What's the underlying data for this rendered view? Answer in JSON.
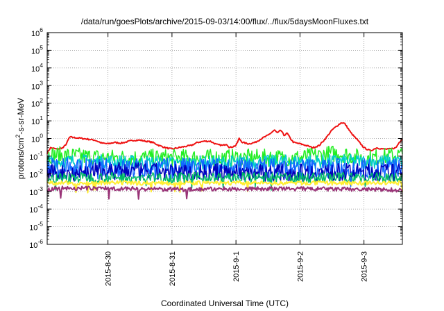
{
  "chart_data": {
    "type": "line",
    "title": "/data/run/goesPlots/archive/2015-09-03/14:00/flux/../flux/5daysMoonFluxes.txt",
    "xlabel": "Coordinated Universal Time (UTC)",
    "ylabel": {
      "pre": "protons/cm",
      "sup": "2",
      "post": "-s-sr-MeV"
    },
    "yscale": "log",
    "ylim_exp": [
      -6,
      6
    ],
    "y_ticks": [
      {
        "base": "10",
        "exp": "-6"
      },
      {
        "base": "10",
        "exp": "-5"
      },
      {
        "base": "10",
        "exp": "-4"
      },
      {
        "base": "10",
        "exp": "-3"
      },
      {
        "base": "10",
        "exp": "-2"
      },
      {
        "base": "10",
        "exp": "-1"
      },
      {
        "base": "10",
        "exp": "0"
      },
      {
        "base": "10",
        "exp": "1"
      },
      {
        "base": "10",
        "exp": "2"
      },
      {
        "base": "10",
        "exp": "3"
      },
      {
        "base": "10",
        "exp": "4"
      },
      {
        "base": "10",
        "exp": "5"
      },
      {
        "base": "10",
        "exp": "6"
      }
    ],
    "x_ticks": [
      {
        "label": "2015-8-30",
        "day": 30.0
      },
      {
        "label": "2015-8-31",
        "day": 31.0
      },
      {
        "label": "2015-9-1",
        "day": 32.0
      },
      {
        "label": "2015-9-2",
        "day": 33.0
      },
      {
        "label": "2015-9-3",
        "day": 34.0
      }
    ],
    "xlim_day": [
      29.05,
      34.6
    ],
    "grid": true,
    "legend": "none",
    "series": [
      {
        "color": "#ee1111",
        "width": 2,
        "noise": 0.04,
        "points": [
          [
            29.05,
            0.15
          ],
          [
            29.1,
            0.3
          ],
          [
            29.2,
            0.25
          ],
          [
            29.3,
            0.3
          ],
          [
            29.35,
            0.5
          ],
          [
            29.4,
            1.2
          ],
          [
            29.5,
            1.1
          ],
          [
            29.6,
            1.0
          ],
          [
            29.7,
            0.9
          ],
          [
            29.8,
            0.8
          ],
          [
            29.9,
            0.55
          ],
          [
            30.0,
            0.5
          ],
          [
            30.1,
            0.6
          ],
          [
            30.2,
            0.55
          ],
          [
            30.3,
            0.65
          ],
          [
            30.4,
            0.8
          ],
          [
            30.5,
            0.8
          ],
          [
            30.6,
            0.7
          ],
          [
            30.7,
            0.6
          ],
          [
            30.8,
            0.4
          ],
          [
            30.9,
            0.3
          ],
          [
            31.0,
            0.25
          ],
          [
            31.1,
            0.3
          ],
          [
            31.2,
            0.35
          ],
          [
            31.3,
            0.4
          ],
          [
            31.4,
            0.6
          ],
          [
            31.5,
            0.7
          ],
          [
            31.6,
            0.7
          ],
          [
            31.7,
            0.45
          ],
          [
            31.8,
            0.4
          ],
          [
            31.85,
            0.5
          ],
          [
            31.9,
            0.3
          ],
          [
            32.0,
            0.4
          ],
          [
            32.05,
            1.0
          ],
          [
            32.1,
            0.6
          ],
          [
            32.2,
            0.5
          ],
          [
            32.3,
            0.6
          ],
          [
            32.4,
            1.0
          ],
          [
            32.5,
            1.5
          ],
          [
            32.6,
            3.0
          ],
          [
            32.65,
            2.0
          ],
          [
            32.7,
            3.0
          ],
          [
            32.75,
            1.5
          ],
          [
            32.8,
            2.0
          ],
          [
            32.85,
            1.0
          ],
          [
            32.9,
            0.6
          ],
          [
            33.0,
            0.5
          ],
          [
            33.1,
            0.4
          ],
          [
            33.2,
            0.3
          ],
          [
            33.3,
            0.4
          ],
          [
            33.4,
            1.0
          ],
          [
            33.5,
            3.0
          ],
          [
            33.6,
            6.0
          ],
          [
            33.65,
            8.0
          ],
          [
            33.7,
            7.0
          ],
          [
            33.8,
            2.0
          ],
          [
            33.9,
            0.8
          ],
          [
            34.0,
            0.3
          ],
          [
            34.1,
            0.2
          ],
          [
            34.2,
            0.3
          ],
          [
            34.3,
            0.25
          ],
          [
            34.4,
            0.25
          ],
          [
            34.5,
            0.3
          ],
          [
            34.55,
            0.6
          ],
          [
            34.6,
            1.0
          ]
        ]
      },
      {
        "color": "#22ee22",
        "width": 1.5,
        "noise": 0.5,
        "points": [
          [
            29.05,
            0.12
          ],
          [
            30.0,
            0.08
          ],
          [
            31.0,
            0.08
          ],
          [
            32.0,
            0.08
          ],
          [
            33.0,
            0.08
          ],
          [
            33.6,
            0.15
          ],
          [
            34.0,
            0.07
          ],
          [
            34.6,
            0.12
          ]
        ]
      },
      {
        "color": "#00cccc",
        "width": 1.5,
        "noise": 0.4,
        "points": [
          [
            29.05,
            0.05
          ],
          [
            30.0,
            0.05
          ],
          [
            31.0,
            0.04
          ],
          [
            32.0,
            0.045
          ],
          [
            33.0,
            0.05
          ],
          [
            34.0,
            0.05
          ],
          [
            34.6,
            0.05
          ]
        ]
      },
      {
        "color": "#1166ff",
        "width": 1.5,
        "noise": 0.6,
        "points": [
          [
            29.05,
            0.02
          ],
          [
            30.0,
            0.02
          ],
          [
            31.0,
            0.02
          ],
          [
            32.0,
            0.02
          ],
          [
            33.0,
            0.02
          ],
          [
            34.0,
            0.02
          ],
          [
            34.6,
            0.02
          ]
        ]
      },
      {
        "color": "#0000bb",
        "width": 1.5,
        "noise": 0.5,
        "points": [
          [
            29.05,
            0.01
          ],
          [
            30.0,
            0.015
          ],
          [
            31.0,
            0.012
          ],
          [
            32.0,
            0.012
          ],
          [
            33.0,
            0.012
          ],
          [
            34.0,
            0.012
          ],
          [
            34.6,
            0.012
          ]
        ]
      },
      {
        "color": "#00bb66",
        "width": 1.5,
        "noise": 0.3,
        "points": [
          [
            29.05,
            0.006
          ],
          [
            30.0,
            0.006
          ],
          [
            31.0,
            0.006
          ],
          [
            32.0,
            0.006
          ],
          [
            33.0,
            0.006
          ],
          [
            34.0,
            0.006
          ],
          [
            34.6,
            0.006
          ]
        ]
      },
      {
        "color": "#ffee33",
        "width": 2,
        "noise": 0.12,
        "points": [
          [
            29.05,
            0.003
          ],
          [
            30.0,
            0.003
          ],
          [
            31.0,
            0.003
          ],
          [
            32.0,
            0.003
          ],
          [
            33.0,
            0.003
          ],
          [
            34.0,
            0.003
          ],
          [
            34.6,
            0.003
          ]
        ]
      },
      {
        "color": "#993377",
        "width": 2,
        "noise": 0.12,
        "points": [
          [
            29.05,
            0.0012
          ],
          [
            29.15,
            0.0015
          ],
          [
            30.0,
            0.0015
          ],
          [
            31.0,
            0.0013
          ],
          [
            32.0,
            0.0014
          ],
          [
            33.0,
            0.0014
          ],
          [
            34.0,
            0.0013
          ],
          [
            34.6,
            0.0012
          ]
        ]
      }
    ]
  }
}
